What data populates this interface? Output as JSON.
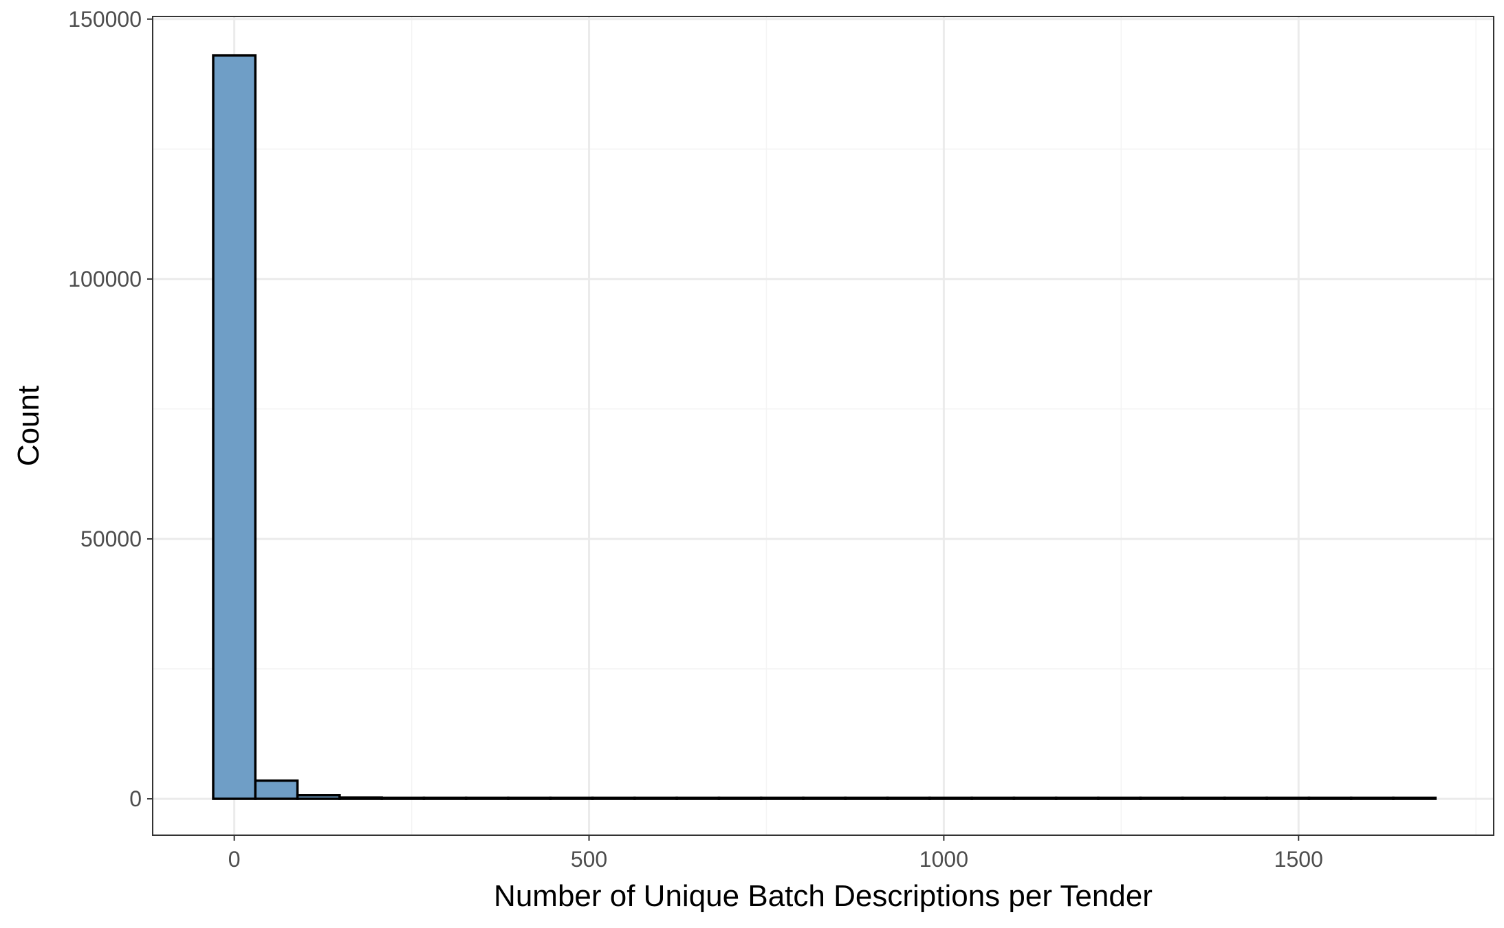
{
  "chart_data": {
    "type": "bar",
    "subtype": "histogram",
    "title": "",
    "xlabel": "Number of Unique Batch Descriptions per Tender",
    "ylabel": "Count",
    "xlim": [
      -115,
      1775
    ],
    "ylim": [
      -7000,
      150500
    ],
    "x_ticks": [
      0,
      500,
      1000,
      1500
    ],
    "x_tick_labels": [
      "0",
      "500",
      "1000",
      "1500"
    ],
    "y_ticks": [
      0,
      50000,
      100000,
      150000
    ],
    "y_tick_labels": [
      "0",
      "50000",
      "100000",
      "150000"
    ],
    "grid": true,
    "legend": "none",
    "bin_width": 59.4,
    "bin_centers": [
      0,
      59.4,
      118.8,
      178.2,
      237.6,
      297,
      356.4,
      415.8,
      475.2,
      534.6,
      594,
      653.4,
      712.8,
      772.2,
      831.6,
      891,
      950.4,
      1009.8,
      1069.2,
      1128.6,
      1188,
      1247.4,
      1306.8,
      1366.2,
      1425.6,
      1485,
      1544.4,
      1603.8,
      1663.2
    ],
    "values": [
      143000,
      3500,
      700,
      250,
      120,
      70,
      40,
      25,
      15,
      10,
      8,
      6,
      5,
      4,
      3,
      3,
      2,
      2,
      2,
      1,
      1,
      1,
      1,
      1,
      1,
      1,
      1,
      1,
      1
    ],
    "colors": {
      "bar_fill": "#6f9ec6",
      "bar_stroke": "#000000",
      "panel_border": "#333333",
      "grid_major": "#ebebeb",
      "grid_minor": "#f4f4f4",
      "tick_text": "#4d4d4d",
      "title_text": "#000000"
    }
  }
}
